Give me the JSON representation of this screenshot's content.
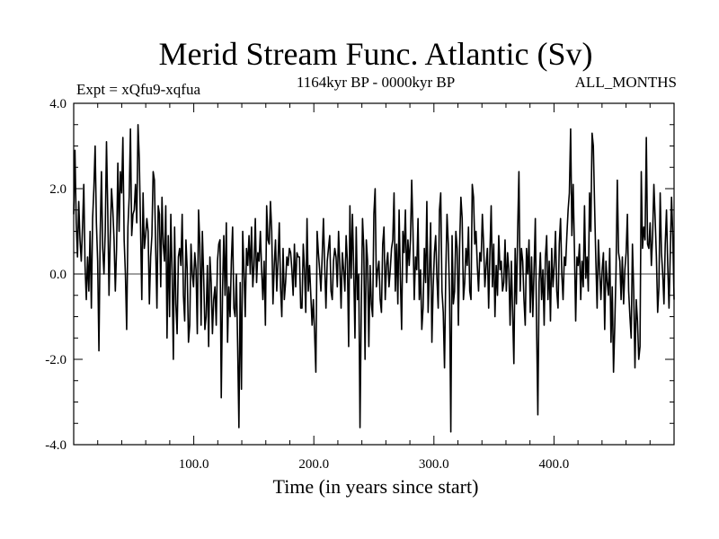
{
  "chart_data": {
    "type": "line",
    "title": "Merid Stream Func. Atlantic (Sv)",
    "subtitle_left": "Expt = xQfu9-xqfua",
    "subtitle_center": "1164kyr BP - 0000kyr BP",
    "subtitle_right": "ALL_MONTHS",
    "xlabel": "Time (in years since start)",
    "ylabel": "",
    "xlim": [
      0,
      500
    ],
    "ylim": [
      -4.0,
      4.0
    ],
    "xticks": [
      100,
      200,
      300,
      400
    ],
    "xtick_labels": [
      "100.0",
      "200.0",
      "300.0",
      "400.0"
    ],
    "yticks": [
      4,
      2,
      0,
      -2,
      -4
    ],
    "ytick_labels": [
      "4.0",
      "2.0",
      "0.0",
      "-2.0",
      "-4.0"
    ],
    "zero_line": true,
    "series": [
      {
        "name": "Merid Stream Func. Atlantic",
        "color": "#000000",
        "values": [
          1.4,
          2.9,
          1.2,
          0.4,
          1.7,
          0.8,
          0.3,
          1.1,
          2.1,
          0.2,
          -0.6,
          0.4,
          -0.4,
          1.0,
          -0.8,
          1.3,
          2.0,
          3.0,
          1.2,
          0.3,
          -1.8,
          0.9,
          2.4,
          0.6,
          0.0,
          1.0,
          3.1,
          1.5,
          -0.5,
          0.9,
          2.0,
          1.5,
          0.8,
          -0.4,
          0.6,
          2.6,
          1.0,
          2.4,
          1.9,
          3.2,
          0.8,
          0.0,
          -1.3,
          1.1,
          1.8,
          3.4,
          0.9,
          1.4,
          1.5,
          2.1,
          1.2,
          3.5,
          2.7,
          1.1,
          -0.6,
          1.9,
          0.6,
          0.9,
          1.3,
          1.0,
          -0.7,
          0.4,
          0.9,
          2.4,
          2.2,
          0.6,
          -0.8,
          1.6,
          1.4,
          -0.3,
          1.8,
          0.7,
          0.3,
          1.6,
          -1.5,
          0.9,
          -1.0,
          1.4,
          0.1,
          -2.0,
          1.1,
          -0.7,
          -1.4,
          0.4,
          0.6,
          0.2,
          1.4,
          -0.5,
          -1.1,
          0.8,
          0.1,
          -1.6,
          -1.2,
          0.7,
          0.0,
          -0.3,
          0.5,
          0.1,
          -1.4,
          1.5,
          0.7,
          -1.2,
          1.0,
          0.0,
          -1.3,
          -1.0,
          0.2,
          -1.7,
          0.4,
          -0.2,
          -1.4,
          -0.6,
          -0.3,
          -1.2,
          0.3,
          0.7,
          0.8,
          -2.9,
          -0.4,
          0.9,
          -0.5,
          1.2,
          -1.6,
          -0.3,
          -1.0,
          0.3,
          1.1,
          -0.8,
          -1.0,
          0.0,
          -1.7,
          -3.6,
          -0.2,
          -2.7,
          1.0,
          0.1,
          -1.0,
          0.6,
          0.2,
          0.9,
          0.0,
          1.1,
          -0.3,
          0.2,
          1.3,
          -0.2,
          0.5,
          0.3,
          1.0,
          0.1,
          -0.6,
          0.3,
          -1.2,
          1.6,
          0.8,
          0.7,
          1.7,
          1.0,
          -0.7,
          0.2,
          0.8,
          -0.4,
          0.3,
          1.2,
          -0.3,
          -1.0,
          0.6,
          -0.6,
          -0.2,
          0.4,
          0.2,
          0.6,
          0.5,
          0.1,
          -0.5,
          0.7,
          -0.3,
          0.5,
          0.4,
          0.4,
          -0.8,
          -0.8,
          0.7,
          0.1,
          -0.9,
          1.3,
          -0.4,
          0.2,
          -0.5,
          -1.2,
          -0.6,
          -1.4,
          -2.3,
          1.0,
          0.5,
          0.1,
          -0.4,
          0.4,
          1.3,
          0.2,
          -0.8,
          0.3,
          0.6,
          0.9,
          -0.4,
          -0.6,
          0.3,
          0.6,
          0.4,
          -0.3,
          1.0,
          0.2,
          -0.8,
          0.5,
          0.1,
          -0.4,
          0.9,
          0.3,
          -1.7,
          1.6,
          -0.1,
          1.4,
          0.1,
          -1.5,
          1.1,
          -0.6,
          0.0,
          -3.6,
          -0.8,
          1.3,
          0.6,
          -2.0,
          0.8,
          0.3,
          -1.7,
          0.2,
          -0.7,
          -1.0,
          1.4,
          2.0,
          -0.3,
          0.1,
          0.3,
          -0.6,
          -0.9,
          0.7,
          1.1,
          -0.6,
          0.2,
          0.5,
          -0.3,
          0.1,
          0.6,
          0.8,
          1.9,
          -0.4,
          0.7,
          -0.7,
          1.5,
          -0.1,
          -1.3,
          1.0,
          0.5,
          1.5,
          -0.2,
          0.8,
          0.2,
          0.8,
          2.2,
          1.0,
          -0.6,
          0.4,
          0.1,
          1.3,
          -0.6,
          0.1,
          -1.3,
          -0.8,
          0.6,
          -0.2,
          1.7,
          -0.9,
          0.0,
          1.2,
          -1.6,
          -0.3,
          0.5,
          0.9,
          -0.1,
          -0.8,
          1.5,
          1.9,
          -0.4,
          -0.9,
          -2.2,
          0.0,
          1.4,
          0.7,
          -0.5,
          -3.7,
          0.9,
          -0.7,
          -0.4,
          1.0,
          0.6,
          -1.2,
          0.7,
          1.8,
          1.3,
          -0.6,
          -0.2,
          0.6,
          0.2,
          1.1,
          -0.4,
          -0.6,
          2.1,
          1.8,
          0.7,
          1.0,
          0.2,
          -0.4,
          0.5,
          0.3,
          1.4,
          0.7,
          -0.3,
          0.2,
          0.6,
          -0.8,
          0.5,
          1.6,
          -0.3,
          0.7,
          -1.0,
          0.2,
          -0.5,
          0.9,
          0.1,
          0.3,
          -0.4,
          -0.2,
          0.8,
          -0.4,
          0.5,
          0.1,
          -1.2,
          0.3,
          -0.9,
          -2.1,
          0.6,
          -0.7,
          1.0,
          2.4,
          -0.4,
          0.6,
          0.3,
          -0.6,
          -1.2,
          0.6,
          0.0,
          0.8,
          -0.9,
          0.4,
          -1.0,
          0.1,
          1.3,
          -1.2,
          -3.3,
          -0.2,
          0.5,
          -0.6,
          0.1,
          -1.2,
          0.4,
          0.9,
          -0.6,
          0.3,
          -1.1,
          0.6,
          -0.3,
          0.2,
          1.0,
          -0.4,
          -0.8,
          0.7,
          1.3,
          0.0,
          -0.6,
          0.4,
          0.2,
          0.9,
          1.5,
          1.9,
          3.4,
          0.9,
          2.1,
          0.6,
          -1.1,
          0.4,
          0.2,
          0.7,
          -0.6,
          0.3,
          -0.3,
          1.6,
          -0.1,
          0.4,
          -0.4,
          1.9,
          1.0,
          3.3,
          3.0,
          1.6,
          0.3,
          -0.8,
          0.8,
          0.1,
          -0.6,
          0.1,
          0.5,
          -1.3,
          0.3,
          -0.2,
          -0.5,
          0.6,
          -1.6,
          -0.3,
          -2.3,
          -1.2,
          0.1,
          2.2,
          0.5,
          0.3,
          -0.6,
          0.4,
          -0.7,
          0.1,
          0.5,
          1.4,
          -0.4,
          -1.0,
          -1.5,
          0.7,
          -0.4,
          -2.2,
          -0.6,
          -1.1,
          -2.0,
          -1.7,
          2.4,
          0.6,
          1.1,
          0.8,
          3.2,
          0.7,
          0.6,
          1.2,
          0.2,
          0.9,
          2.1,
          1.3,
          0.4,
          -0.9,
          -0.3,
          1.9,
          0.5,
          0.0,
          -0.7,
          0.7,
          1.5,
          0.2,
          -0.8,
          0.5,
          1.8,
          0.9,
          -0.6
        ]
      }
    ]
  }
}
